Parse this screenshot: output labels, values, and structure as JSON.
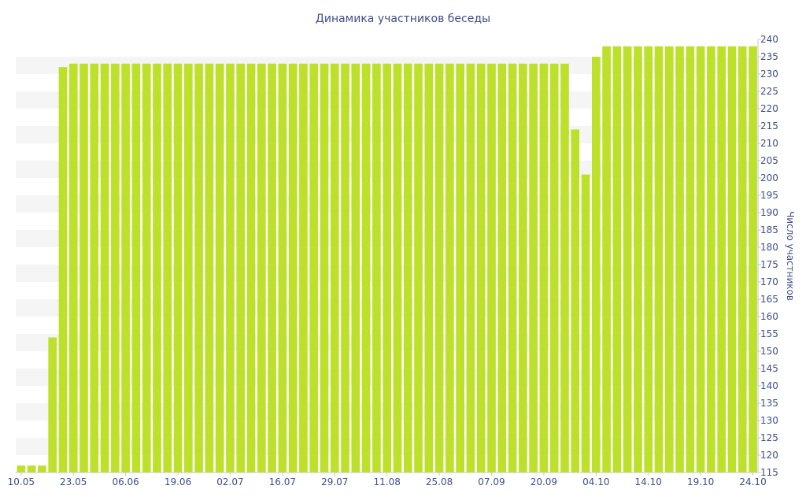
{
  "colors": {
    "bar": "#bde02a",
    "text": "#3d4f8c",
    "stripe": "#f5f5f5"
  },
  "chart_data": {
    "type": "bar",
    "title": "Динамика участников беседы",
    "xlabel": "",
    "ylabel": "Число участников",
    "ylim": [
      115,
      240
    ],
    "y_ticks": [
      115,
      120,
      125,
      130,
      135,
      140,
      145,
      150,
      155,
      160,
      165,
      170,
      175,
      180,
      185,
      190,
      195,
      200,
      205,
      210,
      215,
      220,
      225,
      230,
      235,
      240
    ],
    "y_axis_position": "right",
    "grid": "alternating horizontal bands",
    "legend": "none",
    "x_tick_labels": [
      "10.05",
      "23.05",
      "06.06",
      "19.06",
      "02.07",
      "16.07",
      "29.07",
      "11.08",
      "25.08",
      "07.09",
      "20.09",
      "04.10",
      "14.10",
      "19.10",
      "24.10"
    ],
    "x_tick_bar_index": [
      0,
      5,
      10,
      15,
      20,
      25,
      30,
      35,
      40,
      45,
      50,
      55,
      60,
      65,
      70
    ],
    "values": [
      117,
      117,
      117,
      154,
      232,
      233,
      233,
      233,
      233,
      233,
      233,
      233,
      233,
      233,
      233,
      233,
      233,
      233,
      233,
      233,
      233,
      233,
      233,
      233,
      233,
      233,
      233,
      233,
      233,
      233,
      233,
      233,
      233,
      233,
      233,
      233,
      233,
      233,
      233,
      233,
      233,
      233,
      233,
      233,
      233,
      233,
      233,
      233,
      233,
      233,
      233,
      233,
      233,
      214,
      201,
      235,
      238,
      238,
      238,
      238,
      238,
      238,
      238,
      238,
      238,
      238,
      238,
      238,
      238,
      238,
      238
    ]
  }
}
